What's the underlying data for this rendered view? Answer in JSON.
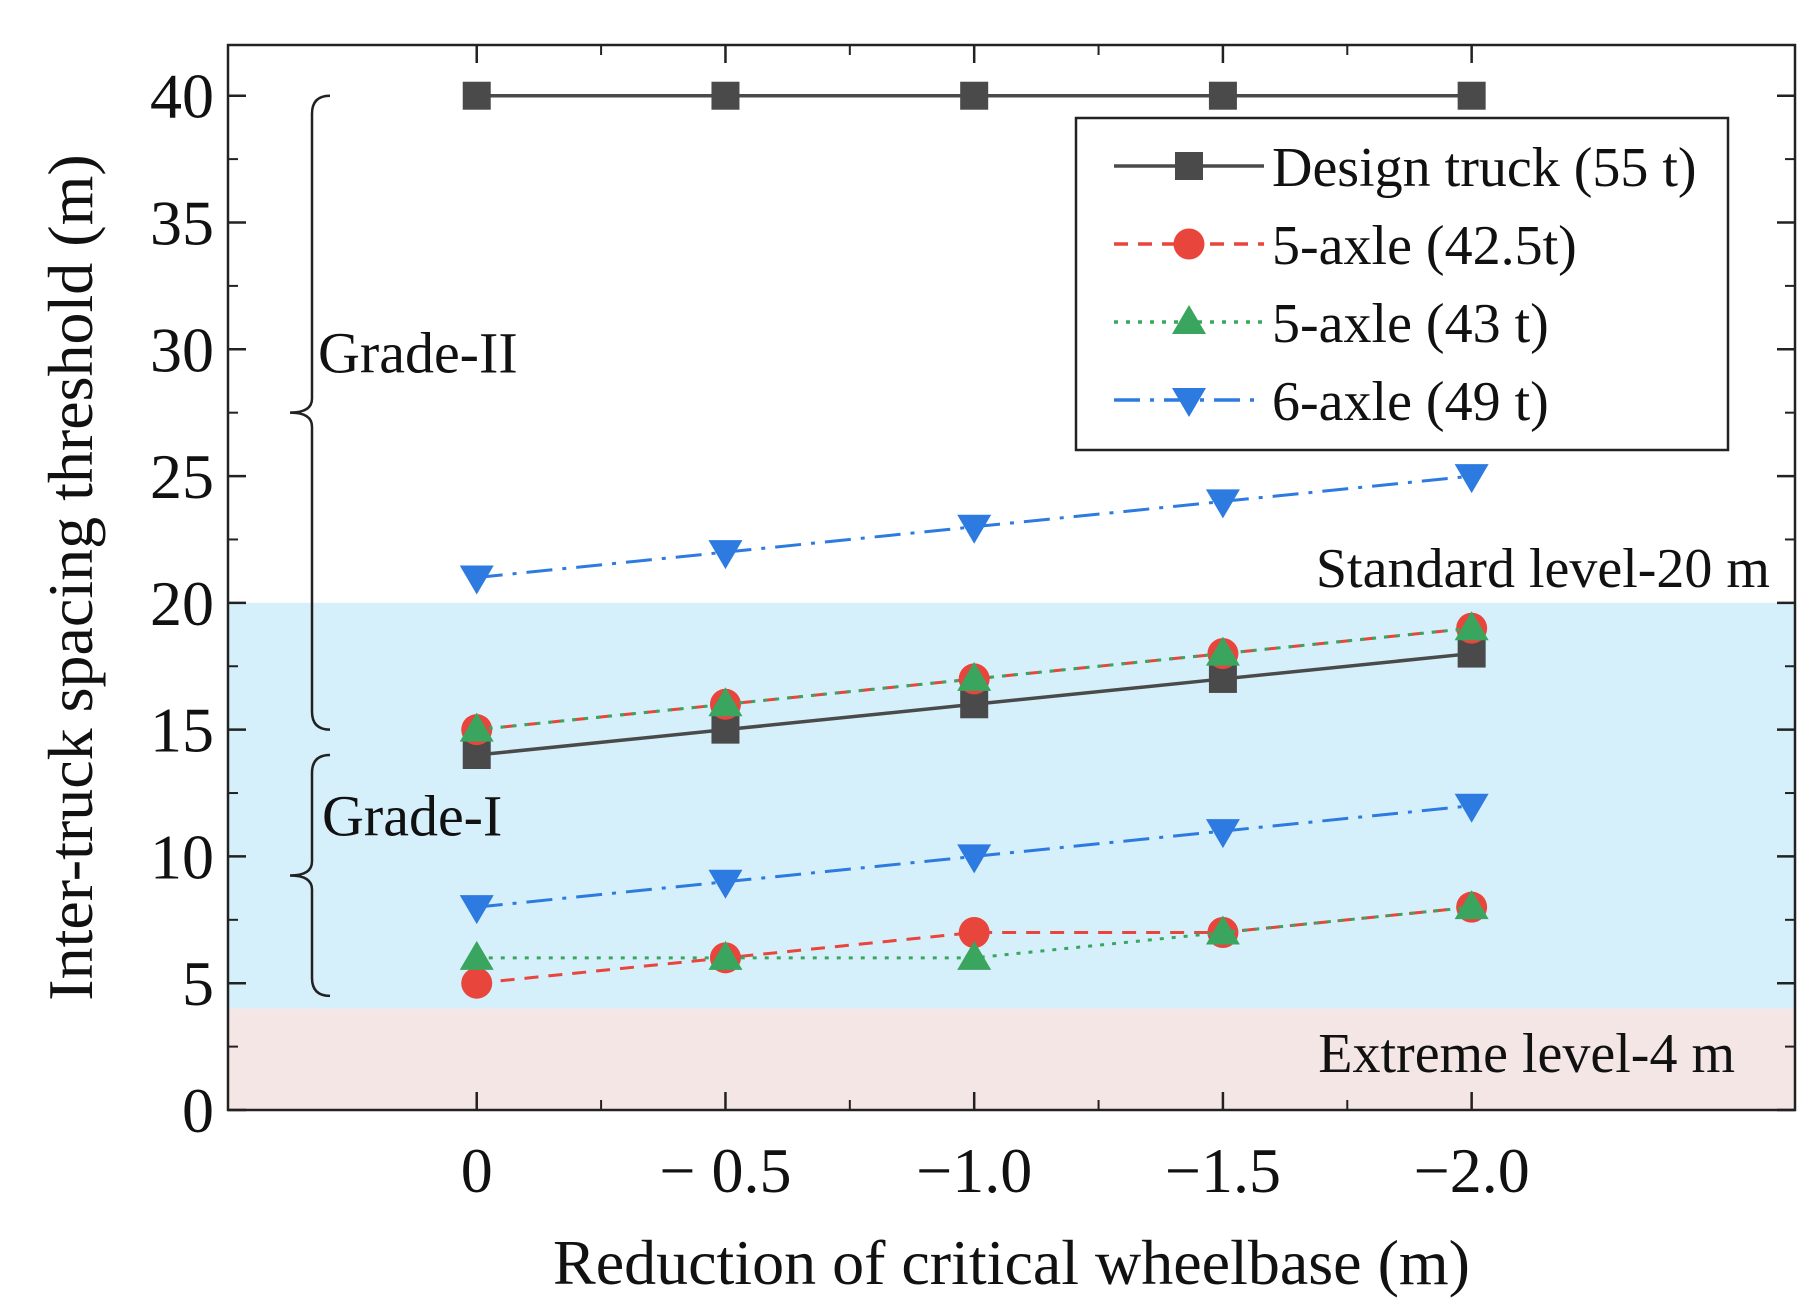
{
  "chart_data": {
    "type": "line",
    "xlabel": "Reduction of critical wheelbase (m)",
    "ylabel": "Inter-truck spacing threshold (m)",
    "xlim": [
      0.5,
      -2.65
    ],
    "ylim": [
      0,
      42
    ],
    "categories": [
      0,
      -0.5,
      -1.0,
      -1.5,
      -2.0
    ],
    "x_tick_labels": [
      "0",
      "− 0.5",
      "−1.0",
      "−1.5",
      "−2.0"
    ],
    "y_ticks": [
      0,
      5,
      10,
      15,
      20,
      25,
      30,
      35,
      40
    ],
    "y_tick_labels": [
      "0",
      "5",
      "10",
      "15",
      "20",
      "25",
      "30",
      "35",
      "40"
    ],
    "bands": [
      {
        "name": "standard",
        "from": 4,
        "to": 20,
        "label": "Standard level-20 m",
        "color": "#d6f0fb"
      },
      {
        "name": "extreme",
        "from": 0,
        "to": 4,
        "label": "Extreme level-4 m",
        "color": "#f5e6e6"
      }
    ],
    "braces": [
      {
        "label": "Grade-II",
        "from": 15,
        "to": 40
      },
      {
        "label": "Grade-I",
        "from": 4.5,
        "to": 14
      }
    ],
    "series": [
      {
        "name": "Design truck (55 t)",
        "values": [
          14,
          15,
          16,
          17,
          18
        ],
        "values_upper": [
          40,
          40,
          40,
          40,
          40
        ],
        "color": "#4a4a4a",
        "marker": "square",
        "dash": "solid"
      },
      {
        "name": "5-axle (42.5t)",
        "values": [
          5,
          6,
          7,
          7,
          8
        ],
        "values_upper": [
          15,
          16,
          17,
          18,
          19
        ],
        "color": "#e8453c",
        "marker": "circle",
        "dash": "dash"
      },
      {
        "name": "5-axle (43 t)",
        "values": [
          6,
          6,
          6,
          7,
          8
        ],
        "values_upper": [
          15,
          16,
          17,
          18,
          19
        ],
        "color": "#3aa55f",
        "marker": "triangle-up",
        "dash": "dot"
      },
      {
        "name": "6-axle (49 t)",
        "values": [
          8,
          9,
          10,
          11,
          12
        ],
        "values_upper": [
          21,
          22,
          23,
          24,
          25
        ],
        "color": "#2d7be0",
        "marker": "triangle-down",
        "dash": "dashdot"
      }
    ]
  }
}
